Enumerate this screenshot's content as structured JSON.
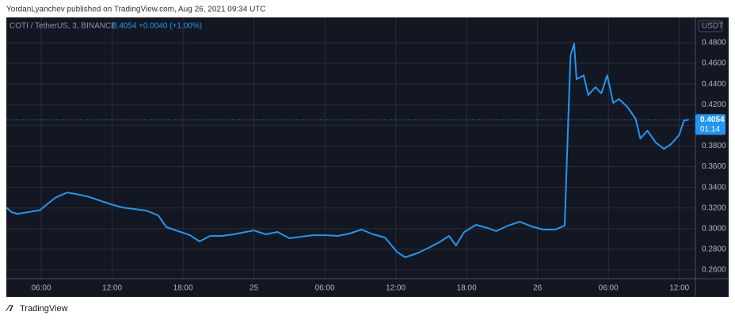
{
  "header": {
    "text": "YordanLyanchev published on TradingView.com, Aug 26, 2021 09:34 UTC"
  },
  "footer": {
    "brand": "TradingView"
  },
  "chart_data": {
    "type": "line",
    "title": "COTI / TetherUS, 3, BINANCE",
    "last_price": 0.4054,
    "change": "+0.0040 (+1.00%)",
    "countdown": "01:14",
    "currency": "USDT",
    "grid": true,
    "series": [
      {
        "name": "COTI / TetherUS",
        "color": "#2196f3",
        "x": [
          3.05,
          3.5,
          4.0,
          4.9,
          5.9,
          6.5,
          7.2,
          8.2,
          8.9,
          9.9,
          10.9,
          11.9,
          12.9,
          13.9,
          14.9,
          15.9,
          16.6,
          17.6,
          18.6,
          19.4,
          20.3,
          21.3,
          22.3,
          23.3,
          24.0,
          25.0,
          26.0,
          27.0,
          28.0,
          29.0,
          30.1,
          31.1,
          32.1,
          33.1,
          34.1,
          35.1,
          36.1,
          36.8,
          37.8,
          38.8,
          39.8,
          40.5,
          41.1,
          41.8,
          42.8,
          43.8,
          44.5,
          45.5,
          46.5,
          47.5,
          48.5,
          49.5,
          50.3,
          50.6,
          50.8,
          51.1,
          51.3,
          51.9,
          52.3,
          52.9,
          53.4,
          53.9,
          54.4,
          54.9,
          55.6,
          56.3,
          56.7,
          57.3,
          58.0,
          58.7,
          59.3,
          60.0,
          60.4,
          60.8
        ],
        "values": [
          0.3205,
          0.316,
          0.3144,
          0.316,
          0.318,
          0.3236,
          0.33,
          0.335,
          0.3336,
          0.3313,
          0.3275,
          0.3236,
          0.3205,
          0.319,
          0.3175,
          0.3129,
          0.3014,
          0.2976,
          0.2937,
          0.2876,
          0.293,
          0.293,
          0.2945,
          0.2968,
          0.2983,
          0.2945,
          0.2968,
          0.2907,
          0.2922,
          0.2937,
          0.2937,
          0.293,
          0.2953,
          0.2991,
          0.2945,
          0.2914,
          0.2776,
          0.2723,
          0.2761,
          0.2815,
          0.2876,
          0.293,
          0.2838,
          0.2968,
          0.3037,
          0.3006,
          0.2976,
          0.303,
          0.3067,
          0.3022,
          0.2991,
          0.2991,
          0.303,
          0.4064,
          0.4677,
          0.4792,
          0.4447,
          0.4485,
          0.4294,
          0.437,
          0.4309,
          0.4485,
          0.4217,
          0.4255,
          0.4178,
          0.4064,
          0.3872,
          0.3949,
          0.3834,
          0.3772,
          0.3818,
          0.391,
          0.4048,
          0.4054
        ]
      }
    ],
    "xlim": [
      3.05,
      61.36
    ],
    "ylim": [
      0.2516,
      0.5045
    ],
    "xticks": [
      {
        "value": 6,
        "label": "06:00"
      },
      {
        "value": 12,
        "label": "12:00"
      },
      {
        "value": 18,
        "label": "18:00"
      },
      {
        "value": 24,
        "label": "25"
      },
      {
        "value": 30,
        "label": "06:00"
      },
      {
        "value": 36,
        "label": "12:00"
      },
      {
        "value": 42,
        "label": "18:00"
      },
      {
        "value": 48,
        "label": "26"
      },
      {
        "value": 54,
        "label": "06:00"
      },
      {
        "value": 60,
        "label": "12:00"
      }
    ],
    "yticks": [
      {
        "value": 0.26,
        "label": "0.2600"
      },
      {
        "value": 0.28,
        "label": "0.2800"
      },
      {
        "value": 0.3,
        "label": "0.3000"
      },
      {
        "value": 0.32,
        "label": "0.3200"
      },
      {
        "value": 0.34,
        "label": "0.3400"
      },
      {
        "value": 0.36,
        "label": "0.3600"
      },
      {
        "value": 0.38,
        "label": "0.3800"
      },
      {
        "value": 0.4,
        "label": "0.4000"
      },
      {
        "value": 0.42,
        "label": "0.4200"
      },
      {
        "value": 0.44,
        "label": "0.4400"
      },
      {
        "value": 0.46,
        "label": "0.4600"
      },
      {
        "value": 0.48,
        "label": "0.4800"
      }
    ]
  }
}
